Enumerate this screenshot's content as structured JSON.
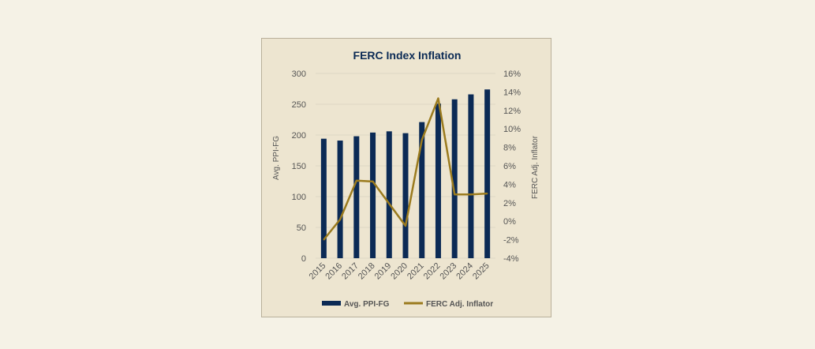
{
  "chart_data": {
    "type": "bar+line",
    "title": "FERC Index Inflation",
    "categories": [
      "2015",
      "2016",
      "2017",
      "2018",
      "2019",
      "2020",
      "2021",
      "2022",
      "2023",
      "2024",
      "2025"
    ],
    "series": [
      {
        "name": "Avg. PPI-FG",
        "type": "bar",
        "axis": "left",
        "color": "#0b2a55",
        "values": [
          194,
          191,
          198,
          204,
          206,
          203,
          221,
          251,
          258,
          266,
          274
        ]
      },
      {
        "name": "FERC Adj. Inflator",
        "type": "line",
        "axis": "right",
        "color": "#9b7b1e",
        "values": [
          -2.0,
          0.2,
          4.4,
          4.3,
          1.9,
          -0.5,
          8.8,
          13.3,
          2.9,
          2.9,
          3.0
        ]
      }
    ],
    "ylabel": "Avg. PPI-FG",
    "y2label": "FERC Adj. Inflator",
    "ylim": [
      0,
      300
    ],
    "y2lim": [
      -4,
      16
    ],
    "yticks": [
      "0",
      "50",
      "100",
      "150",
      "200",
      "250",
      "300"
    ],
    "y2ticks": [
      "-4%",
      "-2%",
      "0%",
      "2%",
      "4%",
      "6%",
      "8%",
      "10%",
      "12%",
      "14%",
      "16%"
    ],
    "grid": true,
    "legend": "bottom"
  }
}
